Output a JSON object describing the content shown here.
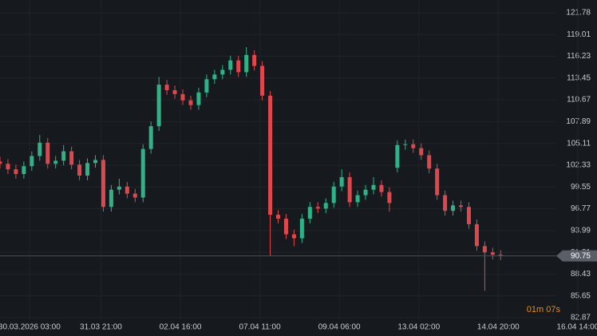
{
  "chart_data": {
    "type": "candlestick",
    "open": [
      102.8,
      102.5,
      101.8,
      101.2,
      102.2,
      103.5,
      105.2,
      102.5,
      102.9,
      104.1,
      102.4,
      101.0,
      102.6,
      103.0,
      97.0,
      99.2,
      99.6,
      98.7,
      98.2,
      104.4,
      107.3,
      112.6,
      111.9,
      111.4,
      110.6,
      110.0,
      111.6,
      113.3,
      113.9,
      114.5,
      115.7,
      114.2,
      116.4,
      115.0,
      111.2,
      96.0,
      95.5,
      93.5,
      93.0,
      95.5,
      97.0,
      96.8,
      97.5,
      99.6,
      100.8,
      97.6,
      98.5,
      99.2,
      99.8,
      98.9,
      102.0,
      104.9,
      105.0,
      104.5,
      103.6,
      101.9,
      98.5,
      96.5,
      97.2,
      97.0,
      94.8,
      92.0,
      91.2,
      90.9
    ],
    "high": [
      103.4,
      103.1,
      102.4,
      102.8,
      104.1,
      106.2,
      105.8,
      103.5,
      104.9,
      104.7,
      103.0,
      103.2,
      103.6,
      103.6,
      99.8,
      100.6,
      100.2,
      99.3,
      105.0,
      107.9,
      113.6,
      113.2,
      112.5,
      112.0,
      111.2,
      112.2,
      113.9,
      114.5,
      115.1,
      116.3,
      116.3,
      117.4,
      117.0,
      115.6,
      111.8,
      96.6,
      96.1,
      94.1,
      96.1,
      97.6,
      97.6,
      98.1,
      100.2,
      101.8,
      101.4,
      99.1,
      99.8,
      100.8,
      100.4,
      99.5,
      105.5,
      105.6,
      105.6,
      105.1,
      104.2,
      102.5,
      99.1,
      97.8,
      97.8,
      97.6,
      95.4,
      92.6,
      91.8,
      91.5
    ],
    "low": [
      101.9,
      101.2,
      100.6,
      100.6,
      101.6,
      102.9,
      101.9,
      101.9,
      102.3,
      101.8,
      100.4,
      100.4,
      102.0,
      96.4,
      96.4,
      98.6,
      98.1,
      97.6,
      97.6,
      103.8,
      106.7,
      111.3,
      110.8,
      110.0,
      109.4,
      109.4,
      111.0,
      112.7,
      113.3,
      113.9,
      113.6,
      113.6,
      114.4,
      110.6,
      90.8,
      94.9,
      92.9,
      92.0,
      92.4,
      94.9,
      96.2,
      96.2,
      96.9,
      99.0,
      97.0,
      97.0,
      97.9,
      98.6,
      98.3,
      96.4,
      101.4,
      104.3,
      103.9,
      103.0,
      101.3,
      97.9,
      95.9,
      95.9,
      96.4,
      94.2,
      91.4,
      86.3,
      90.3,
      90.2
    ],
    "close": [
      102.5,
      101.8,
      101.2,
      102.2,
      103.5,
      105.2,
      102.5,
      102.9,
      104.1,
      102.4,
      101.0,
      102.6,
      103.0,
      97.0,
      99.2,
      99.6,
      98.7,
      98.2,
      104.4,
      107.3,
      112.6,
      111.9,
      111.4,
      110.6,
      110.0,
      111.6,
      113.3,
      113.9,
      114.5,
      115.7,
      114.2,
      116.4,
      115.0,
      111.2,
      96.0,
      95.5,
      93.5,
      93.0,
      95.5,
      97.0,
      96.8,
      97.5,
      99.6,
      100.8,
      97.6,
      98.5,
      99.2,
      99.8,
      98.9,
      97.5,
      104.9,
      105.0,
      104.5,
      103.6,
      101.9,
      98.5,
      96.5,
      97.2,
      97.0,
      94.8,
      92.0,
      91.2,
      90.9,
      90.75
    ],
    "up_color": "#2fb386",
    "down_color": "#e0474d",
    "ylim": [
      82.87,
      121.78
    ],
    "yticks": [
      121.78,
      119.01,
      116.23,
      113.45,
      110.67,
      107.89,
      105.11,
      102.33,
      99.55,
      96.77,
      93.99,
      91.21,
      88.43,
      85.65,
      82.87
    ],
    "xlim": [
      0,
      70
    ],
    "xticks": [
      {
        "value": 3.7,
        "label": "30.03.2026 03:00"
      },
      {
        "value": 12.7,
        "label": "31.03 21:00"
      },
      {
        "value": 22.7,
        "label": "02.04 16:00"
      },
      {
        "value": 32.7,
        "label": "07.04 11:00"
      },
      {
        "value": 42.7,
        "label": "09.04 06:00"
      },
      {
        "value": 52.7,
        "label": "13.04 02:00"
      },
      {
        "value": 62.7,
        "label": "14.04 20:00"
      },
      {
        "value": 72.7,
        "label": "16.04 14:00"
      }
    ],
    "last_price": 90.75,
    "timer": "01m 07s",
    "grid": true
  }
}
